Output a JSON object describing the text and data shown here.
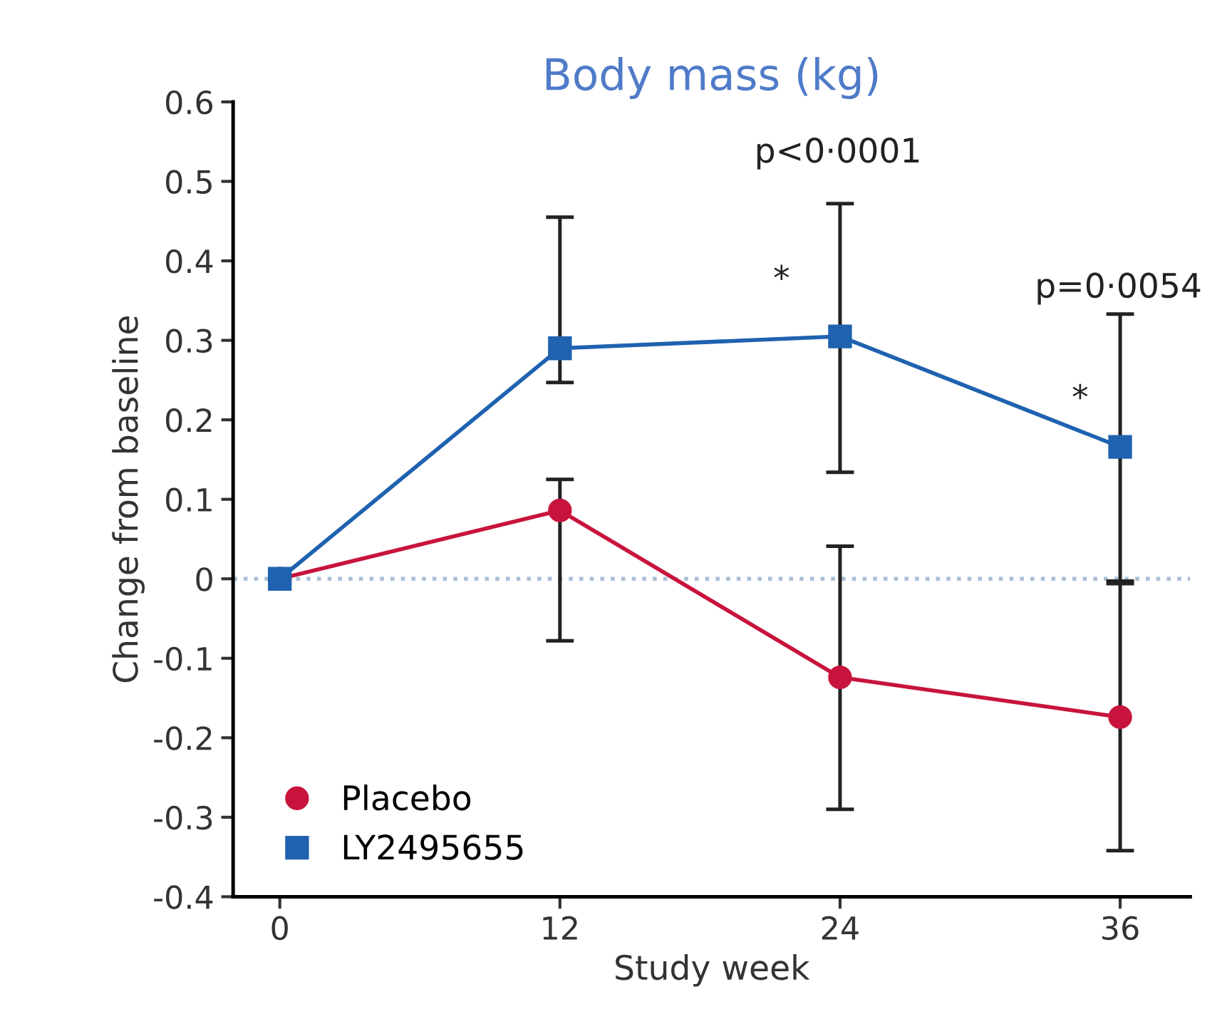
{
  "chart_data": {
    "type": "line",
    "title": "Body mass (kg)",
    "xlabel": "Study week",
    "ylabel": "Change from baseline",
    "x": [
      0,
      12,
      24,
      36
    ],
    "series": [
      {
        "name": "Placebo",
        "color": "#c8143c",
        "marker": "circle",
        "values": [
          0,
          0.086,
          -0.124,
          -0.174
        ],
        "errors": [
          null,
          [
            -0.078,
            0.125
          ],
          [
            -0.29,
            0.041
          ],
          [
            -0.342,
            -0.006
          ]
        ]
      },
      {
        "name": "LY2495655",
        "color": "#1f62b0",
        "marker": "square",
        "values": [
          0,
          0.29,
          0.305,
          0.166
        ],
        "errors": [
          null,
          [
            0.247,
            0.455
          ],
          [
            0.134,
            0.472
          ],
          [
            -0.003,
            0.333
          ]
        ]
      }
    ],
    "xlim": [
      -2,
      39
    ],
    "xticks": [
      0,
      12,
      24,
      36
    ],
    "ylim": [
      -0.4,
      0.6
    ],
    "yticks": [
      -0.4,
      -0.3,
      -0.2,
      -0.1,
      0,
      0.1,
      0.2,
      0.3,
      0.4,
      0.5,
      0.6
    ],
    "ref_lines": [
      {
        "axis": "y",
        "value": 0,
        "color": "#a9bfd6",
        "line_style": "dotted"
      }
    ],
    "annotations": [
      "p<0·0001",
      "*",
      "p=0·0054",
      "*"
    ],
    "grid": false,
    "legend": "bottom left"
  }
}
